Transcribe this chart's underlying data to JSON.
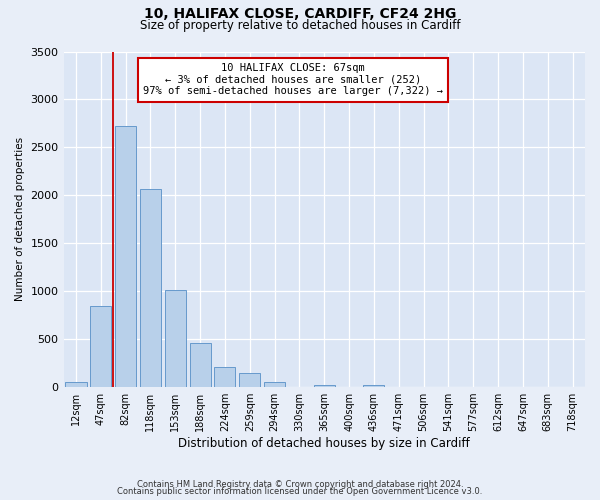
{
  "title_line1": "10, HALIFAX CLOSE, CARDIFF, CF24 2HG",
  "title_line2": "Size of property relative to detached houses in Cardiff",
  "xlabel": "Distribution of detached houses by size in Cardiff",
  "ylabel": "Number of detached properties",
  "footer_line1": "Contains HM Land Registry data © Crown copyright and database right 2024.",
  "footer_line2": "Contains public sector information licensed under the Open Government Licence v3.0.",
  "bin_labels": [
    "12sqm",
    "47sqm",
    "82sqm",
    "118sqm",
    "153sqm",
    "188sqm",
    "224sqm",
    "259sqm",
    "294sqm",
    "330sqm",
    "365sqm",
    "400sqm",
    "436sqm",
    "471sqm",
    "506sqm",
    "541sqm",
    "577sqm",
    "612sqm",
    "647sqm",
    "683sqm",
    "718sqm"
  ],
  "bar_heights": [
    55,
    850,
    2720,
    2070,
    1010,
    455,
    210,
    145,
    55,
    0,
    25,
    0,
    20,
    0,
    0,
    0,
    0,
    0,
    0,
    0,
    0
  ],
  "bar_color": "#b8d0ea",
  "bar_edge_color": "#6699cc",
  "vline_x": 1.5,
  "vline_color": "#cc0000",
  "annotation_text": "10 HALIFAX CLOSE: 67sqm\n← 3% of detached houses are smaller (252)\n97% of semi-detached houses are larger (7,322) →",
  "annotation_box_color": "#ffffff",
  "annotation_box_edge_color": "#cc0000",
  "ylim": [
    0,
    3500
  ],
  "background_color": "#e8eef8",
  "plot_bg_color": "#dce6f5",
  "grid_color": "#ffffff"
}
